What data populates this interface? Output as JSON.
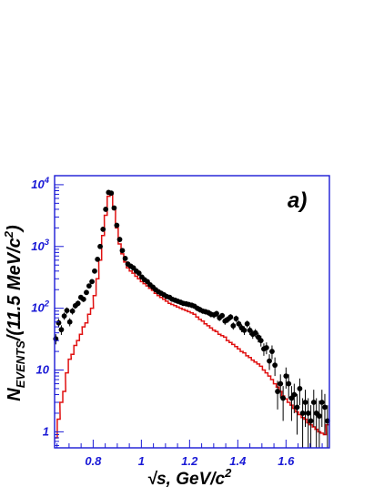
{
  "chart_data": {
    "type": "line",
    "panel_label": "a)",
    "xlabel": "√s, GeV/c²",
    "ylabel": "N_EVENTS/(11.5 MeV/c²)",
    "xlim": [
      0.64,
      1.78
    ],
    "ylim": [
      0.55,
      14000
    ],
    "y_scale": "log",
    "x_ticks": [
      "0.8",
      "1",
      "1.2",
      "1.4",
      "1.6"
    ],
    "y_ticks": [
      {
        "value": 1,
        "base": "1",
        "exp": ""
      },
      {
        "value": 10,
        "base": "10",
        "exp": ""
      },
      {
        "value": 100,
        "base": "10",
        "exp": "2"
      },
      {
        "value": 1000,
        "base": "10",
        "exp": "3"
      },
      {
        "value": 10000,
        "base": "10",
        "exp": "4"
      }
    ],
    "colors": {
      "frame": "#1a1ad6",
      "data": "#000000",
      "mc": "#e01010"
    },
    "series": [
      {
        "kind": "points",
        "x": [
          0.645,
          0.657,
          0.668,
          0.68,
          0.691,
          0.703,
          0.714,
          0.726,
          0.737,
          0.749,
          0.76,
          0.772,
          0.783,
          0.795,
          0.806,
          0.818,
          0.829,
          0.841,
          0.852,
          0.864,
          0.875,
          0.887,
          0.898,
          0.91,
          0.921,
          0.933,
          0.944,
          0.956,
          0.967,
          0.979,
          0.99,
          1.002,
          1.013,
          1.025,
          1.036,
          1.048,
          1.059,
          1.071,
          1.082,
          1.094,
          1.105,
          1.117,
          1.128,
          1.14,
          1.151,
          1.163,
          1.174,
          1.186,
          1.197,
          1.209,
          1.22,
          1.232,
          1.243,
          1.255,
          1.266,
          1.278,
          1.289,
          1.301,
          1.312,
          1.324,
          1.335,
          1.347,
          1.358,
          1.37,
          1.381,
          1.393,
          1.404,
          1.416,
          1.427,
          1.439,
          1.45,
          1.462,
          1.473,
          1.485,
          1.496,
          1.508,
          1.519,
          1.531,
          1.542,
          1.554,
          1.565,
          1.577,
          1.588,
          1.6,
          1.611,
          1.623,
          1.634,
          1.646,
          1.657,
          1.669,
          1.68,
          1.692,
          1.703,
          1.715,
          1.726,
          1.738,
          1.749,
          1.761,
          1.772
        ],
        "y": [
          32,
          58,
          45,
          75,
          92,
          60,
          90,
          110,
          120,
          150,
          140,
          180,
          230,
          270,
          400,
          620,
          1000,
          1900,
          4000,
          7500,
          7300,
          4200,
          2200,
          1300,
          860,
          640,
          520,
          480,
          450,
          400,
          370,
          320,
          290,
          270,
          240,
          220,
          200,
          185,
          175,
          165,
          155,
          150,
          140,
          135,
          130,
          125,
          120,
          118,
          115,
          112,
          108,
          100,
          95,
          90,
          88,
          85,
          80,
          78,
          82,
          70,
          76,
          62,
          66,
          72,
          52,
          68,
          56,
          48,
          44,
          56,
          44,
          38,
          40,
          34,
          30,
          22,
          23,
          14,
          20,
          12,
          4.5,
          6,
          3.5,
          8,
          6,
          3.5,
          4,
          2.5,
          5,
          2,
          3,
          2,
          1.5,
          3,
          2,
          1.8,
          3,
          2.5,
          1.5
        ],
        "yerr": [
          6,
          9,
          8,
          10,
          11,
          9,
          11,
          12,
          13,
          14,
          14,
          15,
          17,
          18,
          22,
          27,
          35,
          48,
          70,
          95,
          95,
          72,
          50,
          38,
          32,
          28,
          25,
          24,
          23,
          22,
          21,
          19,
          18,
          17,
          16,
          15,
          14,
          14,
          13,
          13,
          12,
          12,
          12,
          12,
          11,
          11,
          11,
          11,
          11,
          11,
          10,
          10,
          10,
          9,
          9,
          9,
          9,
          9,
          9,
          8,
          8,
          8,
          8,
          8,
          7,
          8,
          7,
          7,
          7,
          7,
          7,
          6,
          6,
          6,
          6,
          5,
          5,
          4,
          5,
          4,
          2.2,
          2.5,
          2,
          3,
          2.5,
          2,
          2,
          1.6,
          2.3,
          1.5,
          1.8,
          1.5,
          1.2,
          1.8,
          1.5,
          1.4,
          1.8,
          1.6,
          1.2
        ]
      },
      {
        "kind": "histogram",
        "x": [
          0.645,
          0.657,
          0.668,
          0.68,
          0.691,
          0.703,
          0.714,
          0.726,
          0.737,
          0.749,
          0.76,
          0.772,
          0.783,
          0.795,
          0.806,
          0.818,
          0.829,
          0.841,
          0.852,
          0.864,
          0.875,
          0.887,
          0.898,
          0.91,
          0.921,
          0.933,
          0.944,
          0.956,
          0.967,
          0.979,
          0.99,
          1.002,
          1.013,
          1.025,
          1.036,
          1.048,
          1.059,
          1.071,
          1.082,
          1.094,
          1.105,
          1.117,
          1.128,
          1.14,
          1.151,
          1.163,
          1.174,
          1.186,
          1.197,
          1.209,
          1.22,
          1.232,
          1.243,
          1.255,
          1.266,
          1.278,
          1.289,
          1.301,
          1.312,
          1.324,
          1.335,
          1.347,
          1.358,
          1.37,
          1.381,
          1.393,
          1.404,
          1.416,
          1.427,
          1.439,
          1.45,
          1.462,
          1.473,
          1.485,
          1.496,
          1.508,
          1.519,
          1.531,
          1.542,
          1.554,
          1.565,
          1.577,
          1.588,
          1.6,
          1.611,
          1.623,
          1.634,
          1.646,
          1.657,
          1.669,
          1.68,
          1.692,
          1.703,
          1.715,
          1.726,
          1.738,
          1.749,
          1.761,
          1.772
        ],
        "y": [
          0.8,
          1.6,
          3,
          4.5,
          9,
          15,
          18,
          25,
          30,
          38,
          50,
          58,
          80,
          100,
          160,
          300,
          600,
          1500,
          3200,
          6500,
          6800,
          4000,
          2000,
          1100,
          760,
          560,
          450,
          400,
          370,
          330,
          300,
          270,
          250,
          230,
          210,
          195,
          175,
          160,
          150,
          140,
          130,
          120,
          115,
          110,
          105,
          100,
          96,
          92,
          88,
          84,
          80,
          72,
          66,
          62,
          56,
          52,
          48,
          44,
          42,
          38,
          36,
          34,
          30,
          28,
          26,
          24,
          22,
          20,
          19,
          17,
          16,
          14.5,
          13.5,
          12.5,
          11.5,
          10,
          9,
          8,
          7,
          6,
          5.3,
          4.5,
          3.8,
          3.4,
          3,
          2.7,
          2.4,
          2.1,
          1.9,
          1.7,
          1.6,
          1.4,
          1.3,
          1.2,
          1.1,
          1,
          0.95,
          0.9,
          1.3
        ]
      }
    ]
  }
}
